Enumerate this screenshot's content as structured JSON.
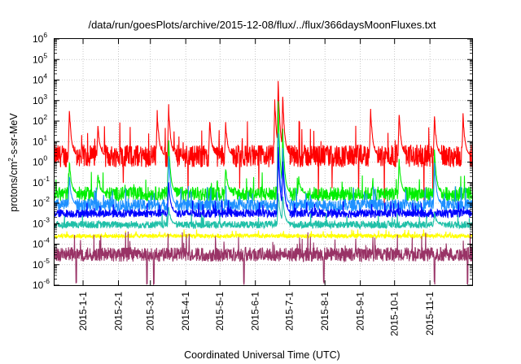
{
  "chart_data": {
    "type": "line",
    "title": "/data/run/goesPlots/archive/2015-12-08/flux/../flux/366daysMoonFluxes.txt",
    "xlabel": "Coordinated Universal Time (UTC)",
    "ylabel": "protons/cm²-s-sr-MeV",
    "ylabel_parts": [
      "protons/cm",
      "2",
      "-s-sr-MeV"
    ],
    "yscale": "log",
    "ylim_exp": [
      -6,
      6
    ],
    "y_ticks": [
      {
        "base": "10",
        "exp": "-6"
      },
      {
        "base": "10",
        "exp": "-5"
      },
      {
        "base": "10",
        "exp": "-4"
      },
      {
        "base": "10",
        "exp": "-3"
      },
      {
        "base": "10",
        "exp": "-2"
      },
      {
        "base": "10",
        "exp": "-1"
      },
      {
        "base": "10",
        "exp": "0"
      },
      {
        "base": "10",
        "exp": "1"
      },
      {
        "base": "10",
        "exp": "2"
      },
      {
        "base": "10",
        "exp": "3"
      },
      {
        "base": "10",
        "exp": "4"
      },
      {
        "base": "10",
        "exp": "5"
      },
      {
        "base": "10",
        "exp": "6"
      }
    ],
    "xlim": [
      "2014-12-07",
      "2015-12-08"
    ],
    "x_ticks": [
      "2015-1-1",
      "2015-2-1",
      "2015-3-1",
      "2015-4-1",
      "2015-5-1",
      "2015-6-1",
      "2015-7-1",
      "2015-8-1",
      "2015-9-1",
      "2015-10-1",
      "2015-11-1"
    ],
    "x_tick_dates": [
      "2015-01-01",
      "2015-02-01",
      "2015-03-01",
      "2015-04-01",
      "2015-05-01",
      "2015-06-01",
      "2015-07-01",
      "2015-08-01",
      "2015-09-01",
      "2015-10-01",
      "2015-11-01"
    ],
    "grid": true,
    "legend": false,
    "series": [
      {
        "color": "#ff0000",
        "baseline_log10": 0.3,
        "noise": 0.55,
        "dips_to_log10": -2.3,
        "peaks": [
          {
            "date": "2014-12-20",
            "log10": 2.6
          },
          {
            "date": "2015-01-14",
            "log10": 1.8
          },
          {
            "date": "2015-03-07",
            "log10": 2.4
          },
          {
            "date": "2015-03-17",
            "log10": 2.7
          },
          {
            "date": "2015-04-22",
            "log10": 2.0
          },
          {
            "date": "2015-05-06",
            "log10": 1.9
          },
          {
            "date": "2015-06-18",
            "log10": 3.0
          },
          {
            "date": "2015-06-21",
            "log10": 4.0
          },
          {
            "date": "2015-06-25",
            "log10": 3.2
          },
          {
            "date": "2015-09-10",
            "log10": 2.6
          },
          {
            "date": "2015-10-05",
            "log10": 2.4
          },
          {
            "date": "2015-11-05",
            "log10": 2.2
          },
          {
            "date": "2015-11-30",
            "log10": 2.3
          }
        ]
      },
      {
        "color": "#00ee00",
        "baseline_log10": -1.55,
        "noise": 0.35,
        "peaks": [
          {
            "date": "2014-12-20",
            "log10": 0.0
          },
          {
            "date": "2015-01-14",
            "log10": -0.6
          },
          {
            "date": "2015-03-17",
            "log10": 1.1
          },
          {
            "date": "2015-05-06",
            "log10": -0.3
          },
          {
            "date": "2015-06-21",
            "log10": 2.9
          },
          {
            "date": "2015-06-25",
            "log10": 1.5
          },
          {
            "date": "2015-07-09",
            "log10": -0.8
          },
          {
            "date": "2015-10-05",
            "log10": 0.1
          },
          {
            "date": "2015-11-05",
            "log10": 0.6
          }
        ]
      },
      {
        "color": "#1e90ff",
        "baseline_log10": -2.1,
        "noise": 0.3,
        "peaks": [
          {
            "date": "2014-12-20",
            "log10": -0.7
          },
          {
            "date": "2015-03-17",
            "log10": 0.4
          },
          {
            "date": "2015-06-21",
            "log10": 1.3
          },
          {
            "date": "2015-06-25",
            "log10": 0.6
          },
          {
            "date": "2015-11-05",
            "log10": 0.0
          }
        ]
      },
      {
        "color": "#0000ff",
        "baseline_log10": -2.5,
        "noise": 0.2,
        "peaks": [
          {
            "date": "2015-03-17",
            "log10": -1.0
          },
          {
            "date": "2015-06-21",
            "log10": 0.7
          },
          {
            "date": "2015-06-25",
            "log10": 0.0
          }
        ]
      },
      {
        "color": "#20c0a8",
        "baseline_log10": -3.05,
        "noise": 0.18,
        "peaks": [
          {
            "date": "2015-03-17",
            "log10": -2.2
          },
          {
            "date": "2015-06-21",
            "log10": -1.4
          },
          {
            "date": "2015-06-25",
            "log10": -1.6
          },
          {
            "date": "2015-11-05",
            "log10": -2.5
          }
        ]
      },
      {
        "color": "#ffff00",
        "baseline_log10": -3.6,
        "noise": 0.1
      },
      {
        "color": "#993366",
        "baseline_log10": -4.5,
        "noise": 0.35,
        "dips_to_log10": -6.0,
        "dip_dates": [
          "2014-12-26",
          "2015-02-26",
          "2015-03-04",
          "2015-05-22",
          "2015-07-31",
          "2015-11-05",
          "2015-12-04"
        ]
      }
    ]
  }
}
